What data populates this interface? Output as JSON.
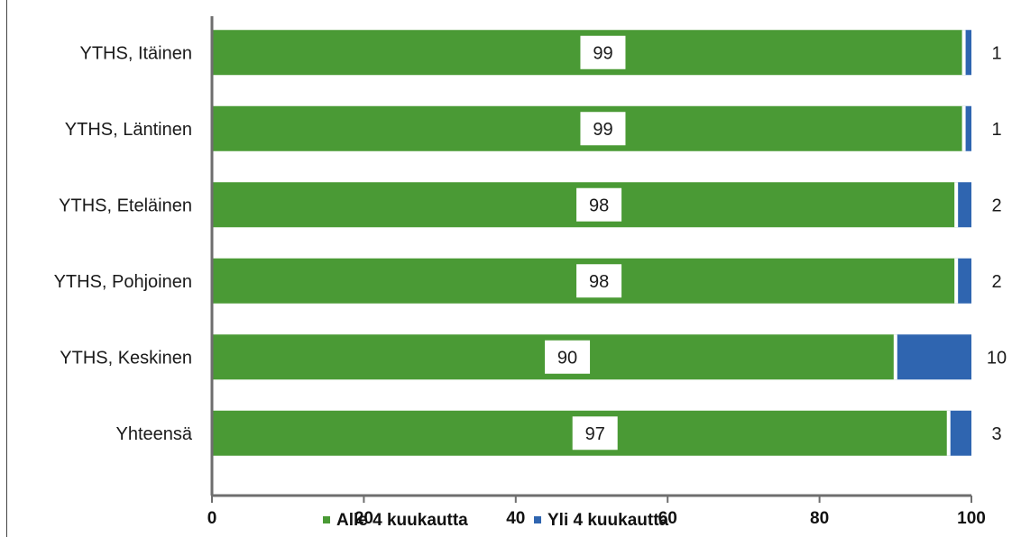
{
  "chart_data": {
    "type": "bar",
    "orientation": "horizontal",
    "stacked": true,
    "categories": [
      "YTHS, Itäinen",
      "YTHS, Läntinen",
      "YTHS, Eteläinen",
      "YTHS, Pohjoinen",
      "YTHS, Keskinen",
      "Yhteensä"
    ],
    "series": [
      {
        "name": "Alle 4 kuukautta",
        "values": [
          99,
          99,
          98,
          98,
          90,
          97
        ],
        "value_labels": [
          "99",
          "99",
          "98",
          "98",
          "90",
          "97"
        ],
        "color": "#4a9a35"
      },
      {
        "name": "Yli 4 kuukautta",
        "values": [
          1,
          1,
          2,
          2,
          10,
          3
        ],
        "value_labels": [
          "1",
          "1",
          "2",
          "2",
          "10",
          "3"
        ],
        "color": "#2f65b0"
      }
    ],
    "xlim": [
      0,
      100
    ],
    "xticks": [
      "0",
      "20",
      "40",
      "60",
      "80",
      "100"
    ],
    "grid": false,
    "legend_position": "bottom",
    "title": "",
    "xlabel": "",
    "ylabel": ""
  }
}
